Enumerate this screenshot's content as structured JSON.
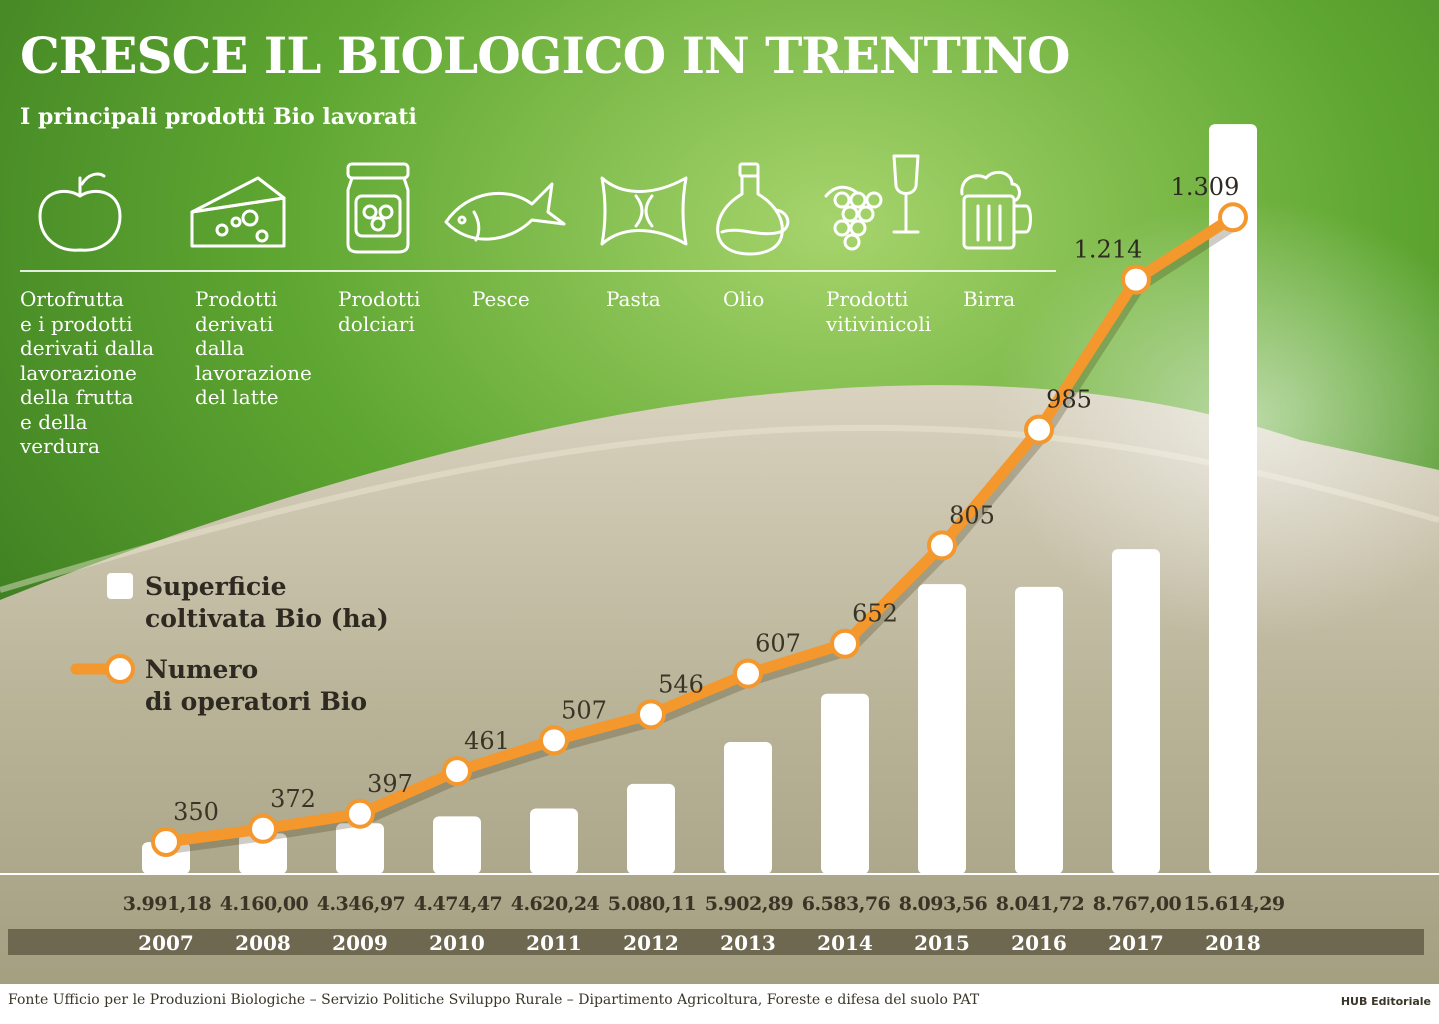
{
  "title": "CRESCE IL BIOLOGICO IN TRENTINO",
  "subtitle": "I principali prodotti Bio lavorati",
  "products": [
    {
      "icon": "apple-icon",
      "label": "Ortofrutta\ne i prodotti\nderivati dalla\nlavorazione\ndella frutta\ne della\nverdura"
    },
    {
      "icon": "cheese-icon",
      "label": "Prodotti\nderivati\ndalla\nlavorazione\ndel latte"
    },
    {
      "icon": "jam-jar-icon",
      "label": "Prodotti\ndolciari"
    },
    {
      "icon": "fish-icon",
      "label": "Pesce"
    },
    {
      "icon": "pasta-icon",
      "label": "Pasta"
    },
    {
      "icon": "oil-bottle-icon",
      "label": "Olio"
    },
    {
      "icon": "grapes-wine-icon",
      "label": "Prodotti\nvitivinicoli"
    },
    {
      "icon": "beer-mug-icon",
      "label": "Birra"
    }
  ],
  "legend": {
    "bars_label": "Superficie\ncoltivata Bio (ha)",
    "line_label": "Numero\ndi operatori Bio"
  },
  "colors": {
    "green": "#4f9a2a",
    "line": "#f4972c",
    "bar": "#ffffff",
    "year_band": "#6e6850"
  },
  "chart_data": {
    "type": "bar",
    "categories": [
      "2007",
      "2008",
      "2009",
      "2010",
      "2011",
      "2012",
      "2013",
      "2014",
      "2015",
      "2016",
      "2017",
      "2018"
    ],
    "series": [
      {
        "name": "Superficie coltivata Bio (ha)",
        "type": "bar",
        "values": [
          3991.18,
          4160.0,
          4346.97,
          4474.47,
          4620.24,
          5080.11,
          5902.89,
          6583.76,
          8093.56,
          8041.72,
          8767.0,
          15614.29
        ],
        "labels": [
          "3.991,18",
          "4.160,00",
          "4.346,97",
          "4.474,47",
          "4.620,24",
          "5.080,11",
          "5.902,89",
          "6.583,76",
          "8.093,56",
          "8.041,72",
          "8.767,00",
          "15.614,29"
        ]
      },
      {
        "name": "Numero di operatori Bio",
        "type": "line",
        "values": [
          350,
          372,
          397,
          461,
          507,
          546,
          607,
          652,
          805,
          985,
          1214,
          1309
        ],
        "labels": [
          "350",
          "372",
          "397",
          "461",
          "507",
          "546",
          "607",
          "652",
          "805",
          "985",
          "1.214",
          "1.309"
        ]
      }
    ],
    "legend": "left"
  },
  "footer": {
    "source": "Fonte Ufficio per le Produzioni Biologiche – Servizio Politiche Sviluppo Rurale – Dipartimento Agricoltura, Foreste e difesa del suolo PAT",
    "brand": "HUB Editoriale"
  }
}
